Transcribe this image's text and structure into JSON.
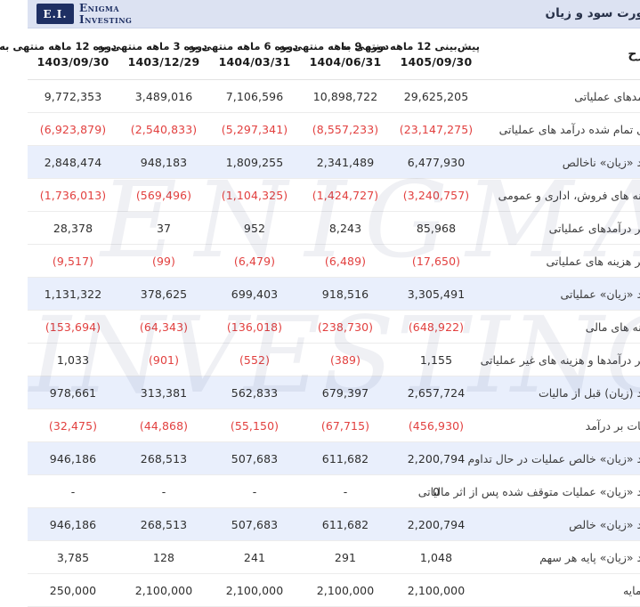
{
  "brand": {
    "monogram": "E.I.",
    "name_line1": "Enigma",
    "name_line2": "Investing"
  },
  "header": {
    "title": "صورت سود و زیان"
  },
  "watermark": {
    "line1": "ENIGMA",
    "line2": "INVESTING"
  },
  "colors": {
    "topbar_bg": "#dce2f2",
    "brand_navy": "#1e2f63",
    "highlight_row": "#e9effc",
    "negative_red": "#e2403f",
    "text_dark": "#2e2e2e"
  },
  "table": {
    "description_header": "شرح",
    "columns": [
      {
        "period": "پیش‌بینی 12 ماهه منتهی به",
        "date": "1405/09/30"
      },
      {
        "period": "دوره 9 ماهه منتهی به",
        "date": "1404/06/31"
      },
      {
        "period": "دوره 6 ماهه منتهی به",
        "date": "1404/03/31"
      },
      {
        "period": "دوره 3 ماهه منتهی به",
        "date": "1403/12/29"
      },
      {
        "period": "دوره 12 ماهه منتهی به",
        "date": "1403/09/30"
      }
    ],
    "rows": [
      {
        "label": "درآمدهای عملیاتی",
        "values": [
          "29,625,205",
          "10,898,722",
          "7,106,596",
          "3,489,016",
          "9,772,353"
        ],
        "highlight": false
      },
      {
        "label": "بهای تمام شده درآمد های عملیاتی",
        "values": [
          "(23,147,275)",
          "(8,557,233)",
          "(5,297,341)",
          "(2,540,833)",
          "(6,923,879)"
        ],
        "highlight": false
      },
      {
        "label": "سود «زیان» ناخالص",
        "values": [
          "6,477,930",
          "2,341,489",
          "1,809,255",
          "948,183",
          "2,848,474"
        ],
        "highlight": true
      },
      {
        "label": "هزینه های فروش، اداری و عمومی",
        "values": [
          "(3,240,757)",
          "(1,424,727)",
          "(1,104,325)",
          "(569,496)",
          "(1,736,013)"
        ],
        "highlight": false
      },
      {
        "label": "سایر درآمدهای عملیاتی",
        "values": [
          "85,968",
          "8,243",
          "952",
          "37",
          "28,378"
        ],
        "highlight": false
      },
      {
        "label": "سایر هزینه های عملیاتی",
        "values": [
          "(17,650)",
          "(6,489)",
          "(6,479)",
          "(99)",
          "(9,517)"
        ],
        "highlight": false
      },
      {
        "label": "سود «زیان» عملیاتی",
        "values": [
          "3,305,491",
          "918,516",
          "699,403",
          "378,625",
          "1,131,322"
        ],
        "highlight": true
      },
      {
        "label": "هزینه های مالی",
        "values": [
          "(648,922)",
          "(238,730)",
          "(136,018)",
          "(64,343)",
          "(153,694)"
        ],
        "highlight": false
      },
      {
        "label": "سایر درآمدها و هزینه های غیر عملیاتی",
        "values": [
          "1,155",
          "(389)",
          "(552)",
          "(901)",
          "1,033"
        ],
        "highlight": false
      },
      {
        "label": "سود (زیان) قبل از مالیات",
        "values": [
          "2,657,724",
          "679,397",
          "562,833",
          "313,381",
          "978,661"
        ],
        "highlight": true
      },
      {
        "label": "مالیات بر درآمد",
        "values": [
          "(456,930)",
          "(67,715)",
          "(55,150)",
          "(44,868)",
          "(32,475)"
        ],
        "highlight": false
      },
      {
        "label": "سود «زیان» خالص عملیات در حال تداوم",
        "values": [
          "2,200,794",
          "611,682",
          "507,683",
          "268,513",
          "946,186"
        ],
        "highlight": true
      },
      {
        "label": "سود «زیان» عملیات متوقف شده پس از اثر مالیاتی",
        "values": [
          "0",
          "-",
          "-",
          "-",
          "-"
        ],
        "highlight": false
      },
      {
        "label": "سود «زیان» خالص",
        "values": [
          "2,200,794",
          "611,682",
          "507,683",
          "268,513",
          "946,186"
        ],
        "highlight": true
      },
      {
        "label": "سود «زیان» پایه هر سهم",
        "values": [
          "1,048",
          "291",
          "241",
          "128",
          "3,785"
        ],
        "highlight": false
      },
      {
        "label": "سرمایه",
        "values": [
          "2,100,000",
          "2,100,000",
          "2,100,000",
          "2,100,000",
          "250,000"
        ],
        "highlight": false
      }
    ]
  }
}
